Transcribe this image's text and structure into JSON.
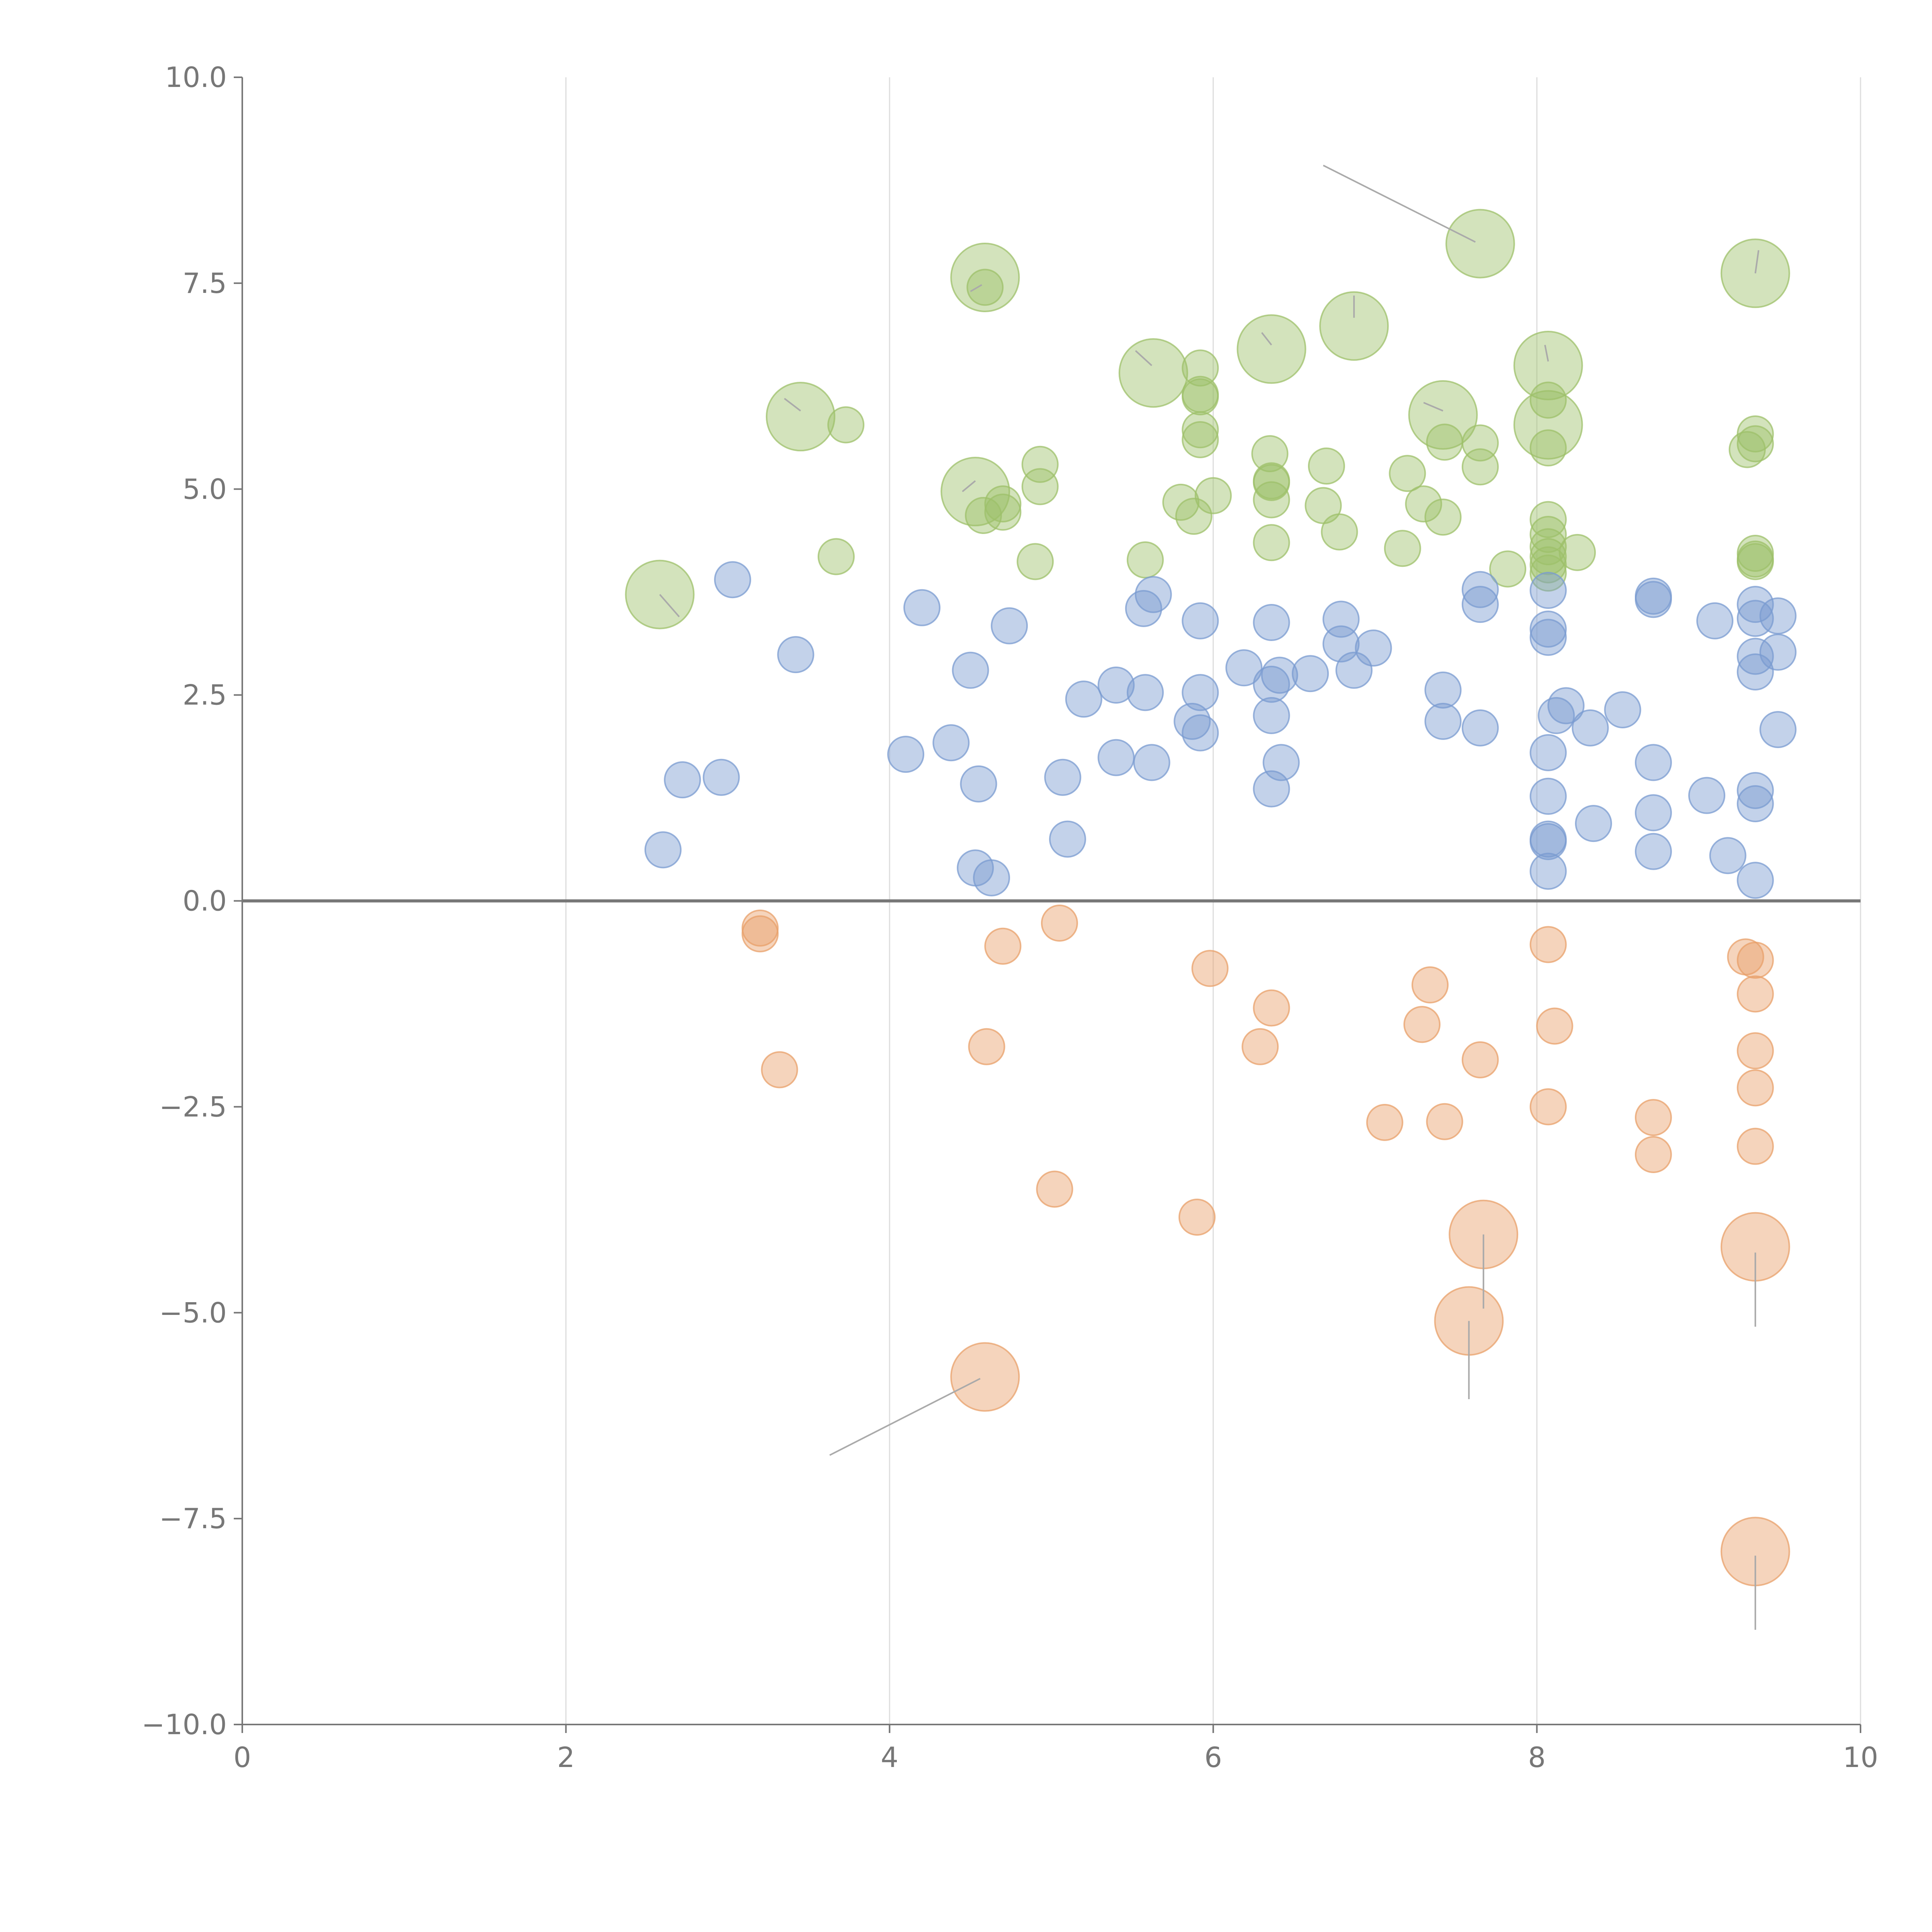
{
  "chart_data": {
    "type": "scatter",
    "title": "",
    "xlabel": "",
    "ylabel": "",
    "xlim": [
      0,
      10
    ],
    "ylim": [
      -10,
      10
    ],
    "x_ticks": [
      "0",
      "2",
      "4",
      "6",
      "8",
      "10"
    ],
    "y_ticks": [
      "10.0",
      "7.5",
      "5.0",
      "2.5",
      "0.0",
      "−2.5",
      "−5.0",
      "−7.5",
      "−10.0"
    ],
    "x_tick_values": [
      0,
      2,
      4,
      6,
      8,
      10
    ],
    "y_tick_values": [
      10,
      7.5,
      5,
      2.5,
      0,
      -2.5,
      -5,
      -7.5,
      -10
    ],
    "grid": "vertical",
    "zero_line": true,
    "colors": {
      "green": "#9dc06a",
      "blue": "#7a9bd0",
      "orange": "#e8a06a",
      "axis": "#777777",
      "grid": "#dddddd"
    },
    "size_scale": "radius grows with size value",
    "series": [
      {
        "name": "green",
        "color": "#9dc06a",
        "points": [
          {
            "x": 2.58,
            "y": 3.72,
            "s": 3
          },
          {
            "x": 3.45,
            "y": 5.88,
            "s": 3
          },
          {
            "x": 3.73,
            "y": 5.78,
            "s": 1
          },
          {
            "x": 3.67,
            "y": 4.18,
            "s": 1
          },
          {
            "x": 4.59,
            "y": 7.57,
            "s": 3
          },
          {
            "x": 4.59,
            "y": 7.45,
            "s": 1
          },
          {
            "x": 4.53,
            "y": 4.97,
            "s": 3
          },
          {
            "x": 4.58,
            "y": 4.68,
            "s": 1
          },
          {
            "x": 4.7,
            "y": 4.72,
            "s": 1
          },
          {
            "x": 4.7,
            "y": 4.82,
            "s": 1
          },
          {
            "x": 4.93,
            "y": 5.3,
            "s": 1
          },
          {
            "x": 4.93,
            "y": 5.03,
            "s": 1
          },
          {
            "x": 4.9,
            "y": 4.12,
            "s": 1
          },
          {
            "x": 5.58,
            "y": 4.14,
            "s": 1
          },
          {
            "x": 5.63,
            "y": 6.41,
            "s": 3
          },
          {
            "x": 5.8,
            "y": 4.84,
            "s": 1
          },
          {
            "x": 5.88,
            "y": 4.67,
            "s": 1
          },
          {
            "x": 5.92,
            "y": 6.47,
            "s": 1
          },
          {
            "x": 5.92,
            "y": 6.15,
            "s": 1
          },
          {
            "x": 5.92,
            "y": 6.12,
            "s": 1
          },
          {
            "x": 5.92,
            "y": 5.72,
            "s": 1
          },
          {
            "x": 5.92,
            "y": 5.6,
            "s": 1
          },
          {
            "x": 6.0,
            "y": 4.92,
            "s": 1
          },
          {
            "x": 6.36,
            "y": 6.7,
            "s": 3
          },
          {
            "x": 6.35,
            "y": 5.43,
            "s": 1
          },
          {
            "x": 6.36,
            "y": 5.1,
            "s": 1
          },
          {
            "x": 6.36,
            "y": 5.08,
            "s": 1
          },
          {
            "x": 6.36,
            "y": 4.87,
            "s": 1
          },
          {
            "x": 6.36,
            "y": 4.35,
            "s": 1
          },
          {
            "x": 6.87,
            "y": 6.98,
            "s": 3
          },
          {
            "x": 6.7,
            "y": 5.28,
            "s": 1
          },
          {
            "x": 6.68,
            "y": 4.8,
            "s": 1
          },
          {
            "x": 6.78,
            "y": 4.48,
            "s": 1
          },
          {
            "x": 7.2,
            "y": 5.19,
            "s": 1
          },
          {
            "x": 7.17,
            "y": 4.28,
            "s": 1
          },
          {
            "x": 7.3,
            "y": 4.82,
            "s": 1
          },
          {
            "x": 7.42,
            "y": 5.9,
            "s": 3
          },
          {
            "x": 7.43,
            "y": 5.57,
            "s": 1
          },
          {
            "x": 7.42,
            "y": 4.66,
            "s": 1
          },
          {
            "x": 7.65,
            "y": 7.98,
            "s": 3
          },
          {
            "x": 7.65,
            "y": 5.56,
            "s": 1
          },
          {
            "x": 7.65,
            "y": 5.27,
            "s": 1
          },
          {
            "x": 7.82,
            "y": 4.03,
            "s": 1
          },
          {
            "x": 8.07,
            "y": 6.5,
            "s": 3
          },
          {
            "x": 8.07,
            "y": 5.78,
            "s": 3
          },
          {
            "x": 8.07,
            "y": 6.08,
            "s": 1
          },
          {
            "x": 8.07,
            "y": 5.5,
            "s": 1
          },
          {
            "x": 8.07,
            "y": 4.63,
            "s": 1
          },
          {
            "x": 8.07,
            "y": 4.45,
            "s": 1
          },
          {
            "x": 8.07,
            "y": 4.3,
            "s": 1
          },
          {
            "x": 8.07,
            "y": 4.18,
            "s": 1
          },
          {
            "x": 8.07,
            "y": 4.08,
            "s": 1
          },
          {
            "x": 8.07,
            "y": 3.98,
            "s": 1
          },
          {
            "x": 8.25,
            "y": 4.23,
            "s": 1
          },
          {
            "x": 9.35,
            "y": 7.62,
            "s": 3
          },
          {
            "x": 9.35,
            "y": 5.67,
            "s": 1
          },
          {
            "x": 9.35,
            "y": 5.55,
            "s": 1
          },
          {
            "x": 9.3,
            "y": 5.48,
            "s": 1
          },
          {
            "x": 9.35,
            "y": 4.22,
            "s": 1
          },
          {
            "x": 9.35,
            "y": 4.15,
            "s": 1
          },
          {
            "x": 9.35,
            "y": 4.12,
            "s": 1
          }
        ]
      },
      {
        "name": "blue",
        "color": "#7a9bd0",
        "points": [
          {
            "x": 3.03,
            "y": 3.9,
            "s": 1
          },
          {
            "x": 3.42,
            "y": 2.99,
            "s": 1
          },
          {
            "x": 2.6,
            "y": 0.62,
            "s": 1
          },
          {
            "x": 2.72,
            "y": 1.47,
            "s": 1
          },
          {
            "x": 2.96,
            "y": 1.5,
            "s": 1
          },
          {
            "x": 4.2,
            "y": 3.56,
            "s": 1
          },
          {
            "x": 4.74,
            "y": 3.34,
            "s": 1
          },
          {
            "x": 4.5,
            "y": 2.8,
            "s": 1
          },
          {
            "x": 4.1,
            "y": 1.78,
            "s": 1
          },
          {
            "x": 4.38,
            "y": 1.92,
            "s": 1
          },
          {
            "x": 4.55,
            "y": 1.42,
            "s": 1
          },
          {
            "x": 4.53,
            "y": 0.4,
            "s": 1
          },
          {
            "x": 4.63,
            "y": 0.28,
            "s": 1
          },
          {
            "x": 5.07,
            "y": 1.5,
            "s": 1
          },
          {
            "x": 5.1,
            "y": 0.75,
            "s": 1
          },
          {
            "x": 5.2,
            "y": 2.45,
            "s": 1
          },
          {
            "x": 5.4,
            "y": 2.62,
            "s": 1
          },
          {
            "x": 5.4,
            "y": 1.74,
            "s": 1
          },
          {
            "x": 5.57,
            "y": 3.55,
            "s": 1
          },
          {
            "x": 5.63,
            "y": 3.72,
            "s": 1
          },
          {
            "x": 5.58,
            "y": 2.53,
            "s": 1
          },
          {
            "x": 5.62,
            "y": 1.68,
            "s": 1
          },
          {
            "x": 5.92,
            "y": 3.4,
            "s": 1
          },
          {
            "x": 5.92,
            "y": 2.53,
            "s": 1
          },
          {
            "x": 5.87,
            "y": 2.18,
            "s": 1
          },
          {
            "x": 5.92,
            "y": 2.04,
            "s": 1
          },
          {
            "x": 6.19,
            "y": 2.83,
            "s": 1
          },
          {
            "x": 6.36,
            "y": 3.38,
            "s": 1
          },
          {
            "x": 6.36,
            "y": 2.63,
            "s": 1
          },
          {
            "x": 6.41,
            "y": 2.74,
            "s": 1
          },
          {
            "x": 6.36,
            "y": 2.25,
            "s": 1
          },
          {
            "x": 6.42,
            "y": 1.68,
            "s": 1
          },
          {
            "x": 6.36,
            "y": 1.36,
            "s": 1
          },
          {
            "x": 6.6,
            "y": 2.76,
            "s": 1
          },
          {
            "x": 6.79,
            "y": 3.42,
            "s": 1
          },
          {
            "x": 6.79,
            "y": 3.12,
            "s": 1
          },
          {
            "x": 6.87,
            "y": 2.8,
            "s": 1
          },
          {
            "x": 6.99,
            "y": 3.07,
            "s": 1
          },
          {
            "x": 7.42,
            "y": 2.56,
            "s": 1
          },
          {
            "x": 7.42,
            "y": 2.18,
            "s": 1
          },
          {
            "x": 7.65,
            "y": 3.78,
            "s": 1
          },
          {
            "x": 7.65,
            "y": 3.6,
            "s": 1
          },
          {
            "x": 7.65,
            "y": 2.1,
            "s": 1
          },
          {
            "x": 8.07,
            "y": 3.77,
            "s": 1
          },
          {
            "x": 8.07,
            "y": 3.3,
            "s": 1
          },
          {
            "x": 8.07,
            "y": 3.2,
            "s": 1
          },
          {
            "x": 8.12,
            "y": 2.25,
            "s": 1
          },
          {
            "x": 8.18,
            "y": 2.37,
            "s": 1
          },
          {
            "x": 8.07,
            "y": 1.8,
            "s": 1
          },
          {
            "x": 8.07,
            "y": 1.27,
            "s": 1
          },
          {
            "x": 8.07,
            "y": 0.75,
            "s": 1
          },
          {
            "x": 8.07,
            "y": 0.72,
            "s": 1
          },
          {
            "x": 8.07,
            "y": 0.36,
            "s": 1
          },
          {
            "x": 8.33,
            "y": 2.1,
            "s": 1
          },
          {
            "x": 8.35,
            "y": 0.94,
            "s": 1
          },
          {
            "x": 8.53,
            "y": 2.32,
            "s": 1
          },
          {
            "x": 8.72,
            "y": 3.7,
            "s": 1
          },
          {
            "x": 8.72,
            "y": 3.66,
            "s": 1
          },
          {
            "x": 8.72,
            "y": 1.68,
            "s": 1
          },
          {
            "x": 8.72,
            "y": 1.07,
            "s": 1
          },
          {
            "x": 8.72,
            "y": 0.6,
            "s": 1
          },
          {
            "x": 9.05,
            "y": 1.28,
            "s": 1
          },
          {
            "x": 9.1,
            "y": 3.4,
            "s": 1
          },
          {
            "x": 9.18,
            "y": 0.55,
            "s": 1
          },
          {
            "x": 9.35,
            "y": 3.6,
            "s": 1
          },
          {
            "x": 9.35,
            "y": 3.43,
            "s": 1
          },
          {
            "x": 9.35,
            "y": 2.97,
            "s": 1
          },
          {
            "x": 9.35,
            "y": 2.78,
            "s": 1
          },
          {
            "x": 9.35,
            "y": 1.34,
            "s": 1
          },
          {
            "x": 9.35,
            "y": 1.18,
            "s": 1
          },
          {
            "x": 9.35,
            "y": 0.25,
            "s": 1
          },
          {
            "x": 9.49,
            "y": 3.46,
            "s": 1
          },
          {
            "x": 9.49,
            "y": 3.02,
            "s": 1
          },
          {
            "x": 9.49,
            "y": 2.08,
            "s": 1
          }
        ]
      },
      {
        "name": "orange",
        "color": "#e8a06a",
        "points": [
          {
            "x": 3.2,
            "y": -0.33,
            "s": 1
          },
          {
            "x": 3.2,
            "y": -0.4,
            "s": 1
          },
          {
            "x": 3.32,
            "y": -2.05,
            "s": 1
          },
          {
            "x": 4.7,
            "y": -0.55,
            "s": 1
          },
          {
            "x": 4.6,
            "y": -1.77,
            "s": 1
          },
          {
            "x": 5.05,
            "y": -0.27,
            "s": 1
          },
          {
            "x": 5.02,
            "y": -3.5,
            "s": 1
          },
          {
            "x": 4.59,
            "y": -5.78,
            "s": 3
          },
          {
            "x": 5.98,
            "y": -0.82,
            "s": 1
          },
          {
            "x": 5.9,
            "y": -3.84,
            "s": 1
          },
          {
            "x": 6.36,
            "y": -1.3,
            "s": 1
          },
          {
            "x": 6.29,
            "y": -1.77,
            "s": 1
          },
          {
            "x": 7.06,
            "y": -2.69,
            "s": 1
          },
          {
            "x": 7.34,
            "y": -1.02,
            "s": 1
          },
          {
            "x": 7.29,
            "y": -1.5,
            "s": 1
          },
          {
            "x": 7.43,
            "y": -2.68,
            "s": 1
          },
          {
            "x": 7.65,
            "y": -1.93,
            "s": 1
          },
          {
            "x": 7.67,
            "y": -4.05,
            "s": 3
          },
          {
            "x": 7.58,
            "y": -5.1,
            "s": 3
          },
          {
            "x": 8.07,
            "y": -0.53,
            "s": 1
          },
          {
            "x": 8.11,
            "y": -1.52,
            "s": 1
          },
          {
            "x": 8.07,
            "y": -2.5,
            "s": 1
          },
          {
            "x": 8.72,
            "y": -2.63,
            "s": 1
          },
          {
            "x": 8.72,
            "y": -3.08,
            "s": 1
          },
          {
            "x": 9.29,
            "y": -0.68,
            "s": 1
          },
          {
            "x": 9.35,
            "y": -0.72,
            "s": 1
          },
          {
            "x": 9.35,
            "y": -1.13,
            "s": 1
          },
          {
            "x": 9.35,
            "y": -1.82,
            "s": 1
          },
          {
            "x": 9.35,
            "y": -2.27,
            "s": 1
          },
          {
            "x": 9.35,
            "y": -2.98,
            "s": 1
          },
          {
            "x": 9.35,
            "y": -4.2,
            "s": 3
          },
          {
            "x": 9.35,
            "y": -7.9,
            "s": 3
          }
        ]
      }
    ],
    "leader_lines": [
      {
        "from": [
          6.68,
          8.93
        ],
        "to": [
          7.62,
          8.0
        ]
      },
      {
        "from": [
          4.57,
          7.48
        ],
        "to": [
          4.5,
          7.4
        ]
      },
      {
        "from": [
          3.35,
          6.1
        ],
        "to": [
          3.45,
          5.95
        ]
      },
      {
        "from": [
          5.52,
          6.68
        ],
        "to": [
          5.62,
          6.5
        ]
      },
      {
        "from": [
          6.3,
          6.9
        ],
        "to": [
          6.36,
          6.75
        ]
      },
      {
        "from": [
          6.87,
          7.35
        ],
        "to": [
          6.87,
          7.08
        ]
      },
      {
        "from": [
          7.3,
          6.05
        ],
        "to": [
          7.42,
          5.95
        ]
      },
      {
        "from": [
          8.05,
          6.75
        ],
        "to": [
          8.07,
          6.55
        ]
      },
      {
        "from": [
          4.45,
          4.97
        ],
        "to": [
          4.53,
          5.1
        ]
      },
      {
        "from": [
          2.58,
          3.72
        ],
        "to": [
          2.7,
          3.45
        ]
      },
      {
        "from": [
          9.35,
          7.62
        ],
        "to": [
          9.37,
          7.9
        ]
      },
      {
        "from": [
          3.63,
          -6.73
        ],
        "to": [
          4.56,
          -5.8
        ]
      },
      {
        "from": [
          7.67,
          -4.05
        ],
        "to": [
          7.67,
          -4.95
        ]
      },
      {
        "from": [
          7.58,
          -5.1
        ],
        "to": [
          7.58,
          -6.05
        ]
      },
      {
        "from": [
          9.35,
          -4.27
        ],
        "to": [
          9.35,
          -5.17
        ]
      },
      {
        "from": [
          9.35,
          -7.95
        ],
        "to": [
          9.35,
          -8.85
        ]
      }
    ]
  }
}
